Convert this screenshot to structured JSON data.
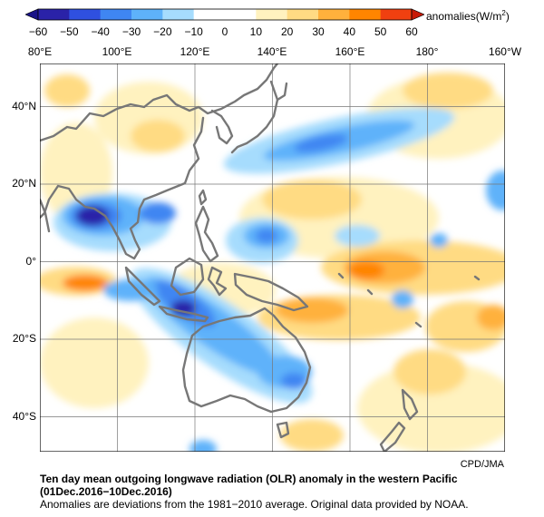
{
  "colorbar": {
    "ticks": [
      "−60",
      "−50",
      "−40",
      "−30",
      "−20",
      "−10",
      "0",
      "10",
      "20",
      "30",
      "40",
      "50",
      "60"
    ],
    "units_prefix": "anomalies(W/m",
    "units_sup": "2",
    "units_suffix": ")",
    "colors": [
      "#2a22a8",
      "#2f50e0",
      "#3f86f2",
      "#5eb2fa",
      "#a6dcfd",
      "#ffffff",
      "#ffffff",
      "#fff2bf",
      "#ffdb83",
      "#ffb13c",
      "#ff8500",
      "#f04010"
    ]
  },
  "axes": {
    "lon_labels": [
      "80°E",
      "100°E",
      "120°E",
      "140°E",
      "160°E",
      "180°",
      "160°W"
    ],
    "lat_labels": [
      "40°N",
      "20°N",
      "0°",
      "20°S",
      "40°S"
    ]
  },
  "map": {
    "land_outline_color": "#777777",
    "grid_color": "#777777"
  },
  "credit": "CPD/JMA",
  "caption": {
    "title": "Ten day mean outgoing longwave radiation (OLR) anomaly in the western Pacific",
    "period": "(01Dec.2016−10Dec.2016)",
    "note": "Anomalies are deviations from the 1981−2010 average. Original data provided by NOAA."
  }
}
